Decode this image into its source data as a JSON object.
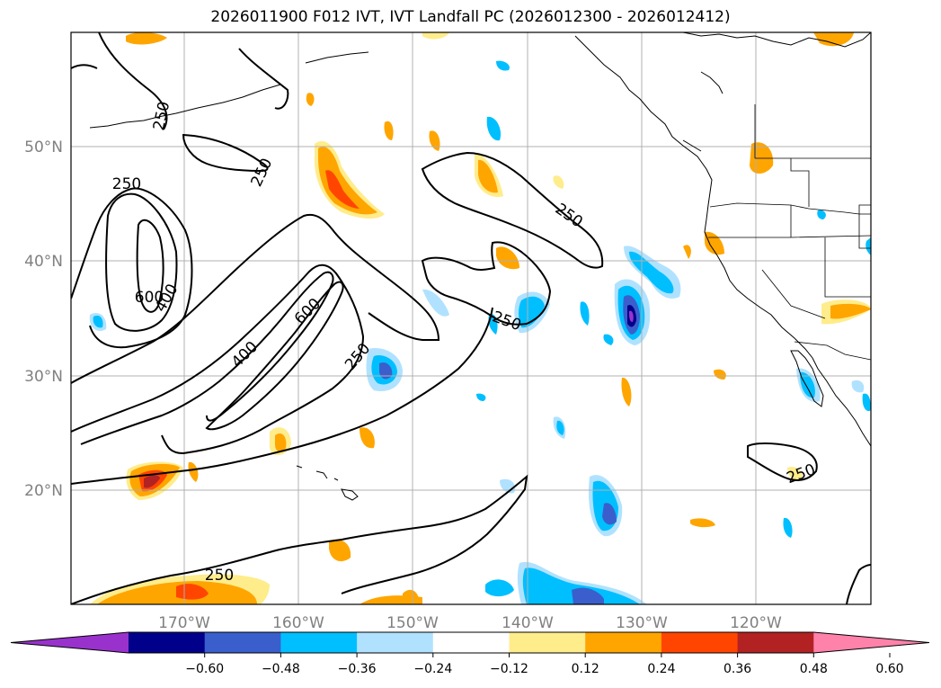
{
  "title": "2026011900 F012 IVT, IVT Landfall PC (2026012300 - 2026012412)",
  "map": {
    "lon_range": [
      -180,
      -110
    ],
    "lat_range": [
      10,
      60
    ],
    "lon_ticks": [
      {
        "value": -170,
        "label": "170°W"
      },
      {
        "value": -160,
        "label": "160°W"
      },
      {
        "value": -150,
        "label": "150°W"
      },
      {
        "value": -140,
        "label": "140°W"
      },
      {
        "value": -130,
        "label": "130°W"
      },
      {
        "value": -120,
        "label": "120°W"
      }
    ],
    "lat_ticks": [
      {
        "value": 20,
        "label": "20°N"
      },
      {
        "value": 30,
        "label": "30°N"
      },
      {
        "value": 40,
        "label": "40°N"
      },
      {
        "value": 50,
        "label": "50°N"
      }
    ],
    "grid": true,
    "contour_labels": [
      "250",
      "250",
      "250",
      "250",
      "250",
      "250",
      "250",
      "400",
      "400",
      "600",
      "600"
    ]
  },
  "colorbar": {
    "ticks": [
      "−0.60",
      "−0.48",
      "−0.36",
      "−0.24",
      "−0.12",
      "0.12",
      "0.24",
      "0.36",
      "0.48",
      "0.60"
    ],
    "colors": [
      "#9932cc",
      "#00008b",
      "#3a5fcd",
      "#00bfff",
      "#b0e2ff",
      "#ffffff",
      "#ffec8b",
      "#ffa500",
      "#ff4500",
      "#b22222",
      "#ff82ab"
    ]
  }
}
